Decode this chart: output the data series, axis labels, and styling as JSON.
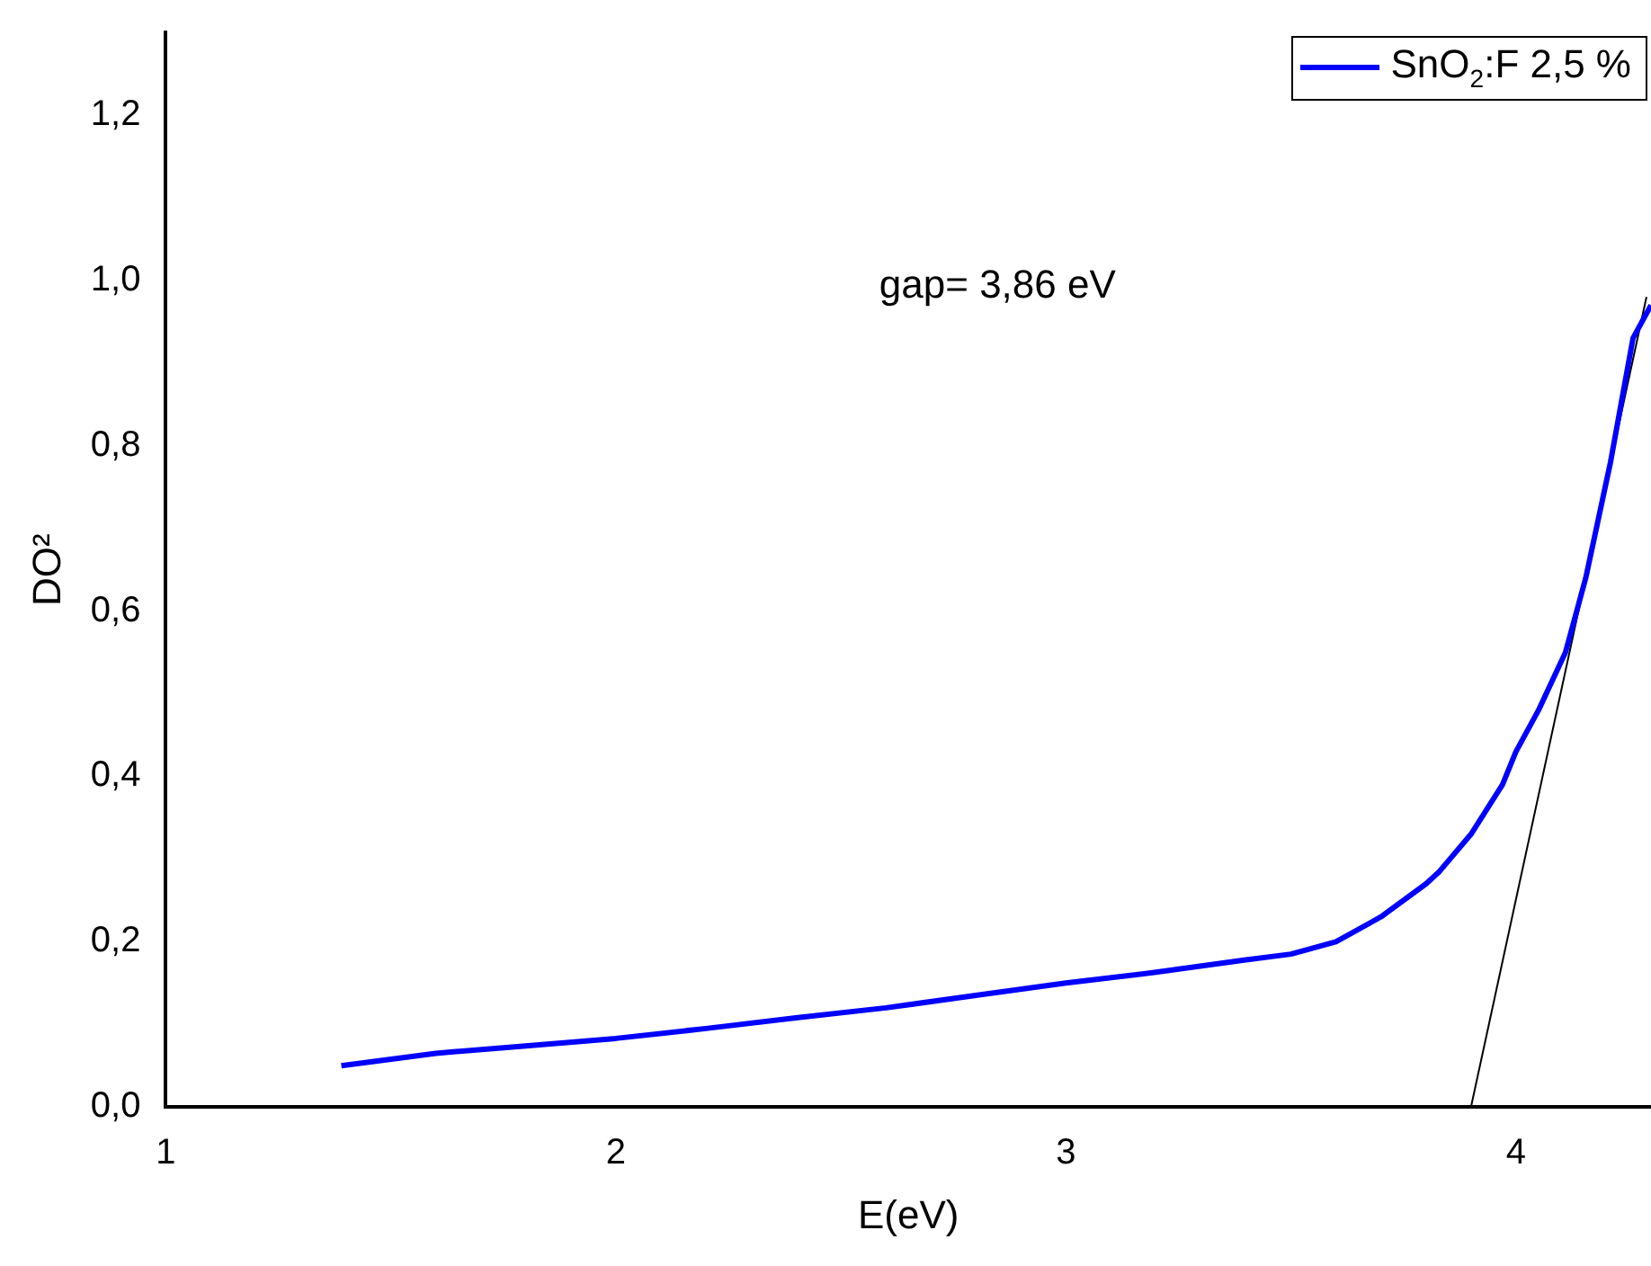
{
  "chart_data": {
    "type": "line",
    "xlabel": "E(eV)",
    "ylabel": "DO²",
    "annotations": [
      "gap= 3,86 eV"
    ],
    "series": [
      {
        "name": "SnO$_{2}$:F 2,5 %",
        "color": "#0000ff",
        "x": [
          1.39,
          1.6,
          1.8,
          2.0,
          2.2,
          2.4,
          2.6,
          2.8,
          3.0,
          3.2,
          3.4,
          3.5,
          3.6,
          3.7,
          3.8,
          3.83,
          3.9,
          3.97,
          4.0,
          4.05,
          4.11,
          4.155,
          4.21,
          4.26,
          4.3
        ],
        "values": [
          0.05,
          0.065,
          0.074,
          0.083,
          0.095,
          0.108,
          0.12,
          0.135,
          0.15,
          0.163,
          0.178,
          0.185,
          0.2,
          0.23,
          0.27,
          0.285,
          0.33,
          0.39,
          0.43,
          0.48,
          0.55,
          0.64,
          0.78,
          0.93,
          0.97
        ]
      },
      {
        "color": "#000000",
        "x": [
          3.9,
          4.29
        ],
        "values": [
          0,
          0.98
        ]
      }
    ],
    "xlim": [
      1,
      4.3
    ],
    "xticks": [
      1,
      2,
      3,
      4
    ],
    "ylim": [
      0,
      1.3
    ],
    "yticks": [
      {
        "value": 0,
        "label": "0,0"
      },
      {
        "value": 0.2,
        "label": "0,2"
      },
      {
        "value": 0.4,
        "label": "0,4"
      },
      {
        "value": 0.6,
        "label": "0,6"
      },
      {
        "value": 0.8,
        "label": "0,8"
      },
      {
        "value": 1.0,
        "label": "1,0"
      },
      {
        "value": 1.2,
        "label": "1,2"
      }
    ],
    "grid": false,
    "legend": "top right",
    "marker": "none",
    "line_style": "solid"
  }
}
